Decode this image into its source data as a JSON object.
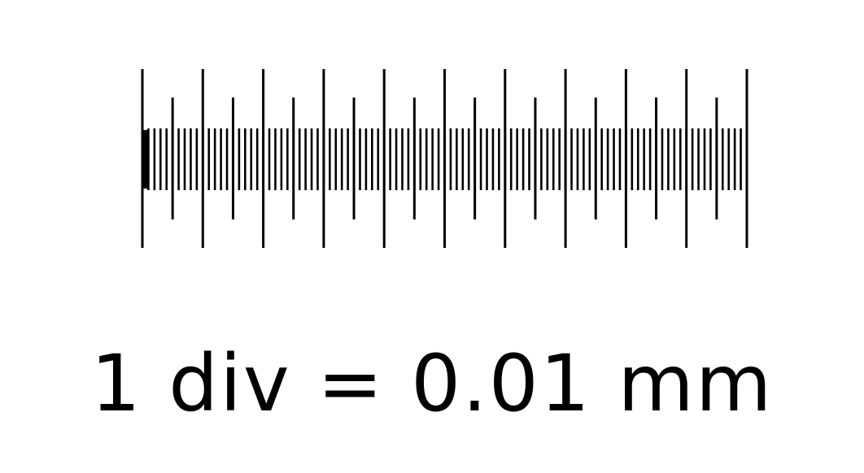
{
  "caption": "1 div = 0.01 mm",
  "micrometer_scale": {
    "major_divisions": 10,
    "half_division_marks": true,
    "fine_lines_per_major_division": 10,
    "line_color": "#000000",
    "background_color": "#ffffff"
  }
}
